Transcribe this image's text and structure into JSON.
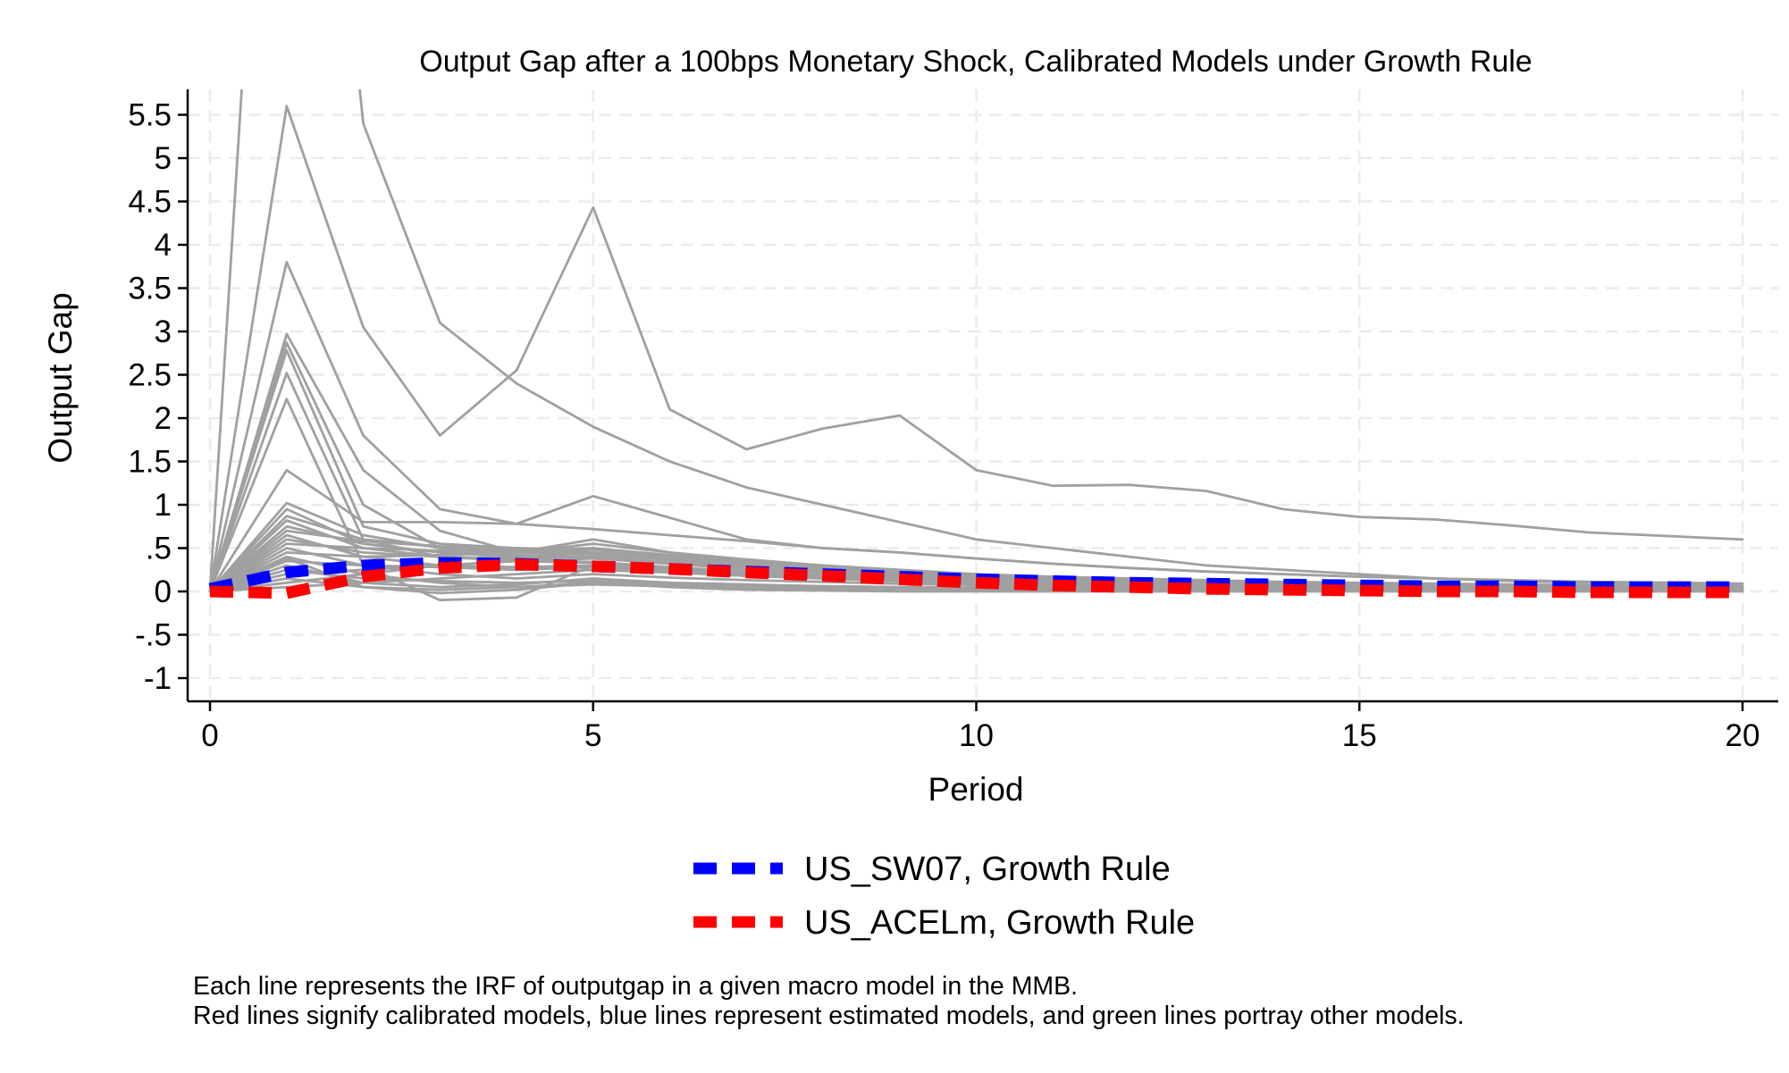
{
  "chart_data": {
    "type": "line",
    "title": "Output Gap after a 100bps Monetary Shock, Calibrated Models under Growth Rule",
    "xlabel": "Period",
    "ylabel": "Output Gap",
    "xlim": [
      0,
      20
    ],
    "ylim": [
      -1.2,
      5.7
    ],
    "xticks": [
      0,
      5,
      10,
      15,
      20
    ],
    "yticks": [
      {
        "value": 5.5,
        "label": "5.5"
      },
      {
        "value": 5,
        "label": "5"
      },
      {
        "value": 4.5,
        "label": "4.5"
      },
      {
        "value": 4,
        "label": "4"
      },
      {
        "value": 3.5,
        "label": "3.5"
      },
      {
        "value": 3,
        "label": "3"
      },
      {
        "value": 2.5,
        "label": "2.5"
      },
      {
        "value": 2,
        "label": "2"
      },
      {
        "value": 1.5,
        "label": "1.5"
      },
      {
        "value": 1,
        "label": "1"
      },
      {
        "value": 0.5,
        "label": ".5"
      },
      {
        "value": 0,
        "label": "0"
      },
      {
        "value": -0.5,
        "label": "-.5"
      },
      {
        "value": -1,
        "label": "-1"
      }
    ],
    "grid": true,
    "legend_position": "bottom",
    "x": [
      0,
      1,
      2,
      3,
      4,
      5,
      6,
      7,
      8,
      9,
      10,
      11,
      12,
      13,
      14,
      15,
      16,
      17,
      18,
      19,
      20
    ],
    "background_series": [
      [
        0,
        14,
        5.4,
        3.1,
        2.4,
        1.9,
        1.5,
        1.2,
        1.0,
        0.8,
        0.6,
        0.5,
        0.4,
        0.3,
        0.25,
        0.2,
        0.15,
        0.12,
        0.1,
        0.08,
        0.06
      ],
      [
        0,
        5.6,
        3.05,
        1.8,
        2.55,
        4.43,
        2.1,
        1.64,
        1.88,
        2.03,
        1.4,
        1.22,
        1.23,
        1.16,
        0.95,
        0.86,
        0.83,
        0.76,
        0.68,
        0.64,
        0.6
      ],
      [
        0,
        3.8,
        1.8,
        0.95,
        0.78,
        1.1,
        0.85,
        0.6,
        0.5,
        0.45,
        0.38,
        0.32,
        0.27,
        0.23,
        0.2,
        0.17,
        0.15,
        0.13,
        0.11,
        0.1,
        0.09
      ],
      [
        0,
        2.97,
        1.4,
        0.7,
        0.45,
        0.6,
        0.45,
        0.35,
        0.3,
        0.25,
        0.2,
        0.17,
        0.15,
        0.13,
        0.11,
        0.1,
        0.09,
        0.08,
        0.07,
        0.06,
        0.05
      ],
      [
        0,
        2.87,
        1.0,
        0.5,
        0.35,
        0.5,
        0.4,
        0.32,
        0.27,
        0.22,
        0.18,
        0.15,
        0.13,
        0.11,
        0.1,
        0.09,
        0.08,
        0.07,
        0.06,
        0.05,
        0.05
      ],
      [
        0,
        2.78,
        0.75,
        0.55,
        0.5,
        0.45,
        0.38,
        0.3,
        0.25,
        0.2,
        0.16,
        0.13,
        0.11,
        0.1,
        0.09,
        0.08,
        0.07,
        0.06,
        0.05,
        0.05,
        0.04
      ],
      [
        0,
        2.52,
        0.6,
        0.4,
        0.35,
        0.4,
        0.32,
        0.26,
        0.22,
        0.18,
        0.15,
        0.12,
        0.1,
        0.09,
        0.08,
        0.07,
        0.06,
        0.05,
        0.05,
        0.04,
        0.04
      ],
      [
        0,
        2.22,
        0.3,
        -0.1,
        -0.07,
        0.3,
        0.25,
        0.2,
        0.17,
        0.14,
        0.11,
        0.09,
        0.08,
        0.07,
        0.06,
        0.05,
        0.05,
        0.04,
        0.04,
        0.03,
        0.03
      ],
      [
        0,
        1.4,
        0.8,
        0.8,
        0.78,
        0.72,
        0.65,
        0.58,
        0.5,
        0.45,
        0.38,
        0.32,
        0.27,
        0.23,
        0.2,
        0.17,
        0.15,
        0.13,
        0.11,
        0.1,
        0.09
      ],
      [
        0,
        1.02,
        0.65,
        0.5,
        0.47,
        0.45,
        0.38,
        0.3,
        0.25,
        0.2,
        0.16,
        0.13,
        0.11,
        0.1,
        0.09,
        0.08,
        0.07,
        0.06,
        0.05,
        0.05,
        0.04
      ],
      [
        0,
        0.95,
        0.55,
        0.45,
        0.4,
        0.38,
        0.32,
        0.26,
        0.22,
        0.18,
        0.15,
        0.12,
        0.1,
        0.09,
        0.08,
        0.07,
        0.06,
        0.05,
        0.05,
        0.04,
        0.04
      ],
      [
        0,
        0.87,
        0.6,
        0.52,
        0.5,
        0.48,
        0.4,
        0.33,
        0.27,
        0.22,
        0.18,
        0.15,
        0.12,
        0.1,
        0.09,
        0.08,
        0.07,
        0.06,
        0.05,
        0.05,
        0.04
      ],
      [
        0,
        0.82,
        0.5,
        0.4,
        0.36,
        0.34,
        0.28,
        0.23,
        0.19,
        0.16,
        0.13,
        0.11,
        0.09,
        0.08,
        0.07,
        0.06,
        0.05,
        0.05,
        0.04,
        0.04,
        0.03
      ],
      [
        0,
        0.75,
        0.55,
        0.45,
        0.42,
        0.4,
        0.33,
        0.27,
        0.23,
        0.19,
        0.16,
        0.13,
        0.11,
        0.09,
        0.08,
        0.07,
        0.06,
        0.05,
        0.05,
        0.04,
        0.04
      ],
      [
        0,
        0.7,
        0.58,
        0.52,
        0.48,
        0.5,
        0.42,
        0.35,
        0.29,
        0.24,
        0.2,
        0.16,
        0.14,
        0.12,
        0.1,
        0.09,
        0.08,
        0.07,
        0.06,
        0.05,
        0.05
      ],
      [
        0,
        0.65,
        0.4,
        0.3,
        0.28,
        0.3,
        0.25,
        0.2,
        0.17,
        0.14,
        0.11,
        0.09,
        0.08,
        0.07,
        0.06,
        0.05,
        0.05,
        0.04,
        0.04,
        0.03,
        0.03
      ],
      [
        0,
        0.6,
        0.45,
        0.4,
        0.38,
        0.4,
        0.33,
        0.27,
        0.22,
        0.18,
        0.15,
        0.12,
        0.1,
        0.09,
        0.08,
        0.07,
        0.06,
        0.05,
        0.05,
        0.04,
        0.04
      ],
      [
        0,
        0.55,
        0.5,
        0.47,
        0.45,
        0.43,
        0.36,
        0.29,
        0.24,
        0.2,
        0.16,
        0.13,
        0.11,
        0.09,
        0.08,
        0.07,
        0.06,
        0.05,
        0.05,
        0.04,
        0.04
      ],
      [
        0,
        0.5,
        0.3,
        0.2,
        0.15,
        0.2,
        0.16,
        0.13,
        0.11,
        0.09,
        0.07,
        0.06,
        0.05,
        0.05,
        0.04,
        0.04,
        0.03,
        0.03,
        0.03,
        0.02,
        0.02
      ],
      [
        0,
        0.45,
        0.4,
        0.42,
        0.45,
        0.55,
        0.45,
        0.37,
        0.3,
        0.24,
        0.19,
        0.15,
        0.12,
        0.1,
        0.08,
        0.07,
        0.06,
        0.05,
        0.05,
        0.04,
        0.04
      ],
      [
        0,
        0.4,
        0.2,
        0.1,
        0.05,
        0.1,
        0.07,
        0.05,
        0.04,
        0.03,
        0.03,
        0.02,
        0.02,
        0.02,
        0.01,
        0.01,
        0.01,
        0.01,
        0.01,
        0.01,
        0.01
      ],
      [
        0,
        0.35,
        0.3,
        0.28,
        0.25,
        0.28,
        0.22,
        0.18,
        0.15,
        0.12,
        0.1,
        0.08,
        0.07,
        0.06,
        0.05,
        0.05,
        0.04,
        0.04,
        0.03,
        0.03,
        0.03
      ],
      [
        0,
        0.3,
        0.1,
        0.05,
        0.08,
        0.15,
        0.1,
        0.07,
        0.06,
        0.05,
        0.04,
        0.03,
        0.03,
        0.02,
        0.02,
        0.02,
        0.02,
        0.01,
        0.01,
        0.01,
        0.01
      ],
      [
        0,
        0.25,
        0.15,
        0.12,
        0.1,
        0.12,
        0.1,
        0.08,
        0.06,
        0.05,
        0.04,
        0.04,
        0.03,
        0.03,
        0.02,
        0.02,
        0.02,
        0.02,
        0.01,
        0.01,
        0.01
      ],
      [
        0,
        0.2,
        0.25,
        0.3,
        0.35,
        0.38,
        0.33,
        0.28,
        0.24,
        0.2,
        0.16,
        0.13,
        0.11,
        0.09,
        0.08,
        0.07,
        0.06,
        0.05,
        0.05,
        0.04,
        0.04
      ],
      [
        0,
        0.15,
        0.05,
        0.02,
        0.05,
        0.08,
        0.06,
        0.04,
        0.03,
        0.03,
        0.02,
        0.02,
        0.02,
        0.01,
        0.01,
        0.01,
        0.01,
        0.01,
        0.01,
        0.01,
        0.01
      ],
      [
        0,
        0.1,
        0.2,
        0.3,
        0.35,
        0.33,
        0.26,
        0.2,
        0.16,
        0.12,
        0.09,
        0.07,
        0.05,
        0.04,
        0.03,
        0.03,
        0.02,
        0.02,
        0.02,
        0.01,
        0.01
      ],
      [
        0,
        0.05,
        0.1,
        0.15,
        0.2,
        0.25,
        0.22,
        0.18,
        0.15,
        0.12,
        0.1,
        0.08,
        0.07,
        0.06,
        0.05,
        0.04,
        0.04,
        0.03,
        0.03,
        0.03,
        0.02
      ],
      [
        0,
        0.38,
        0.05,
        -0.02,
        0.02,
        0.1,
        0.05,
        0.02,
        0.01,
        0.0,
        0.0,
        0.0,
        0.0,
        0.0,
        0.0,
        0.0,
        0.0,
        0.0,
        0.0,
        0.0,
        0.0
      ]
    ],
    "series": [
      {
        "name": "US_SW07, Growth Rule",
        "color": "#0000ff",
        "values": [
          0.03,
          0.22,
          0.3,
          0.33,
          0.32,
          0.29,
          0.26,
          0.23,
          0.2,
          0.17,
          0.14,
          0.12,
          0.1,
          0.09,
          0.08,
          0.07,
          0.06,
          0.06,
          0.05,
          0.05,
          0.05
        ]
      },
      {
        "name": "US_ACELm, Growth Rule",
        "color": "#ff0000",
        "values": [
          0.0,
          -0.02,
          0.17,
          0.27,
          0.31,
          0.29,
          0.26,
          0.22,
          0.18,
          0.14,
          0.1,
          0.07,
          0.05,
          0.03,
          0.02,
          0.01,
          0.0,
          0.0,
          -0.01,
          -0.01,
          -0.01
        ]
      }
    ],
    "notes": [
      "Each line represents the IRF of outputgap in a given macro model in the MMB.",
      "Red lines signify calibrated models, blue lines represent estimated models, and green lines portray other models."
    ]
  }
}
